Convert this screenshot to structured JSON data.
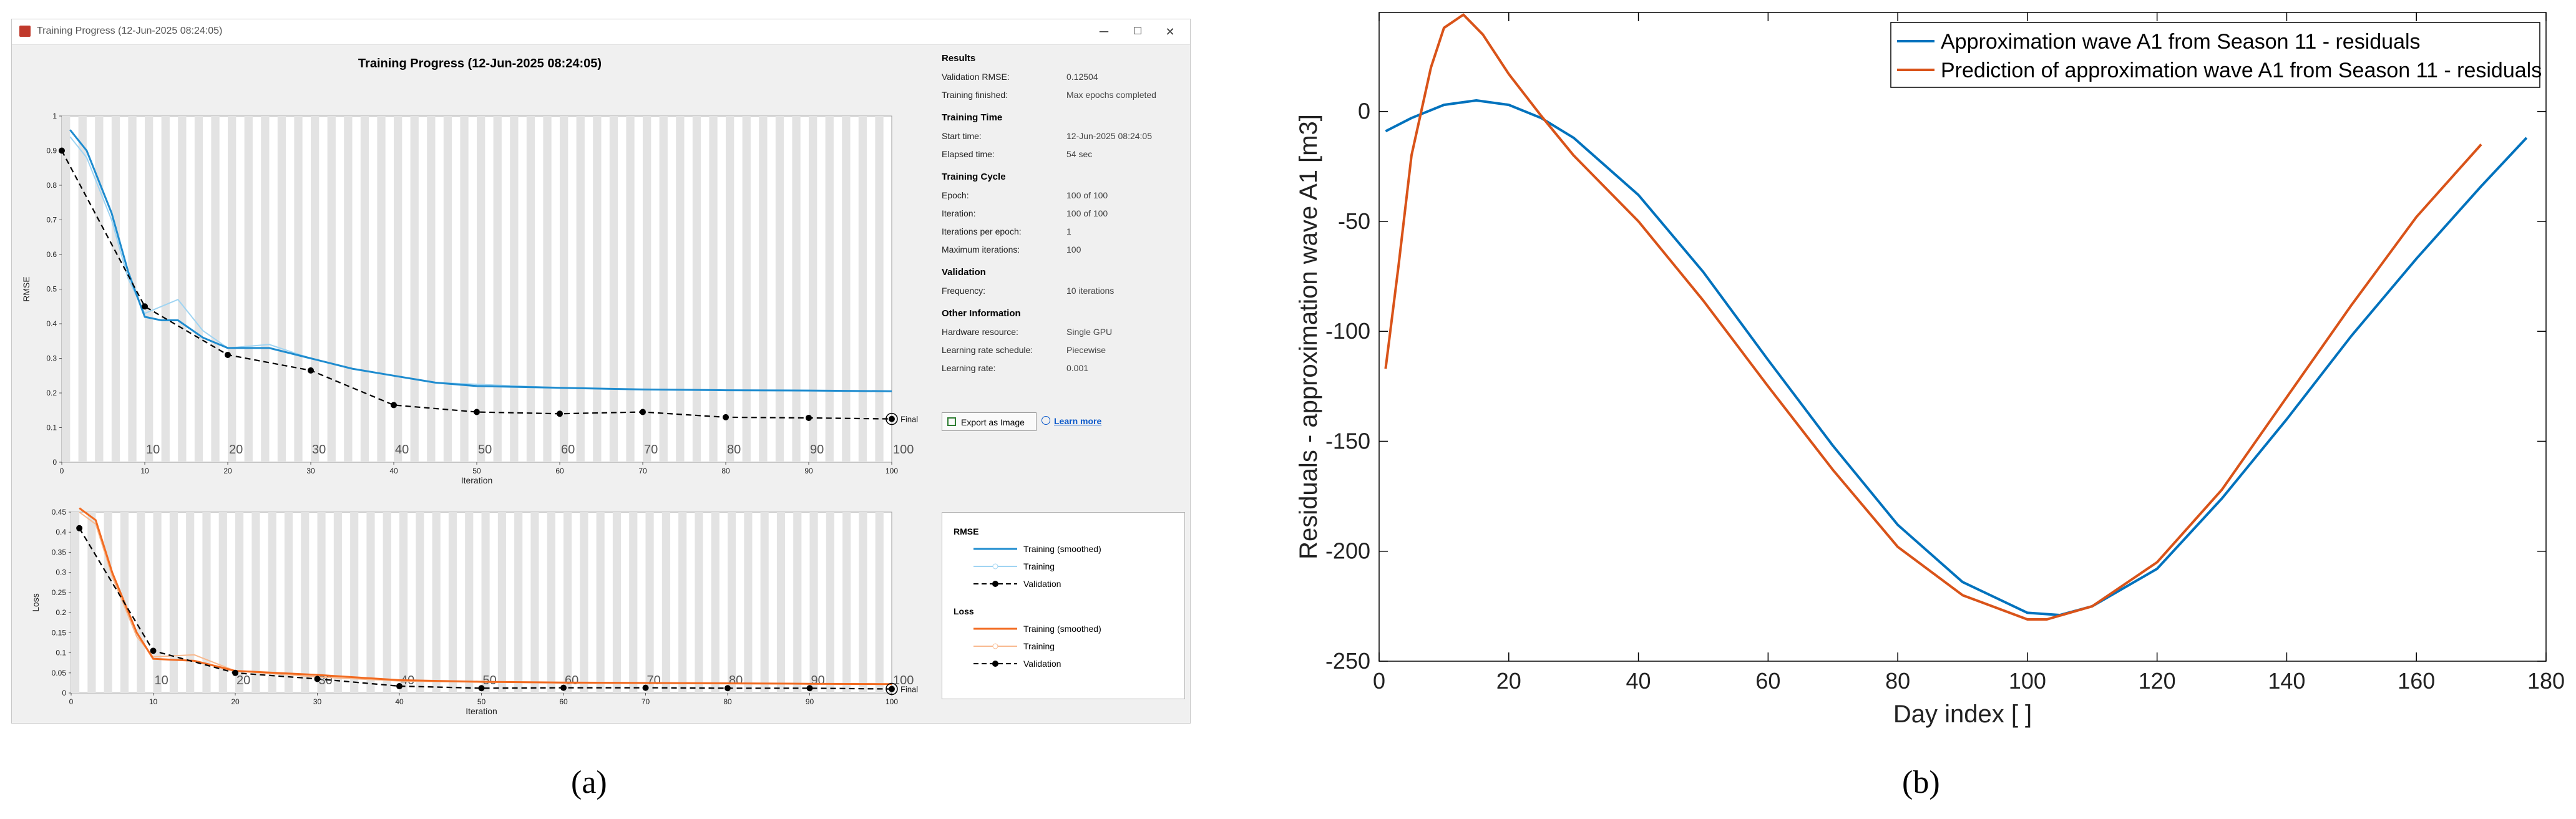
{
  "window": {
    "title": "Training Progress (12-Jun-2025 08:24:05)",
    "minimize": "─",
    "maximize": "☐",
    "close": "✕"
  },
  "plot_title": "Training Progress (12-Jun-2025 08:24:05)",
  "info": {
    "sections": [
      {
        "heading": "Results",
        "rows": [
          {
            "k": "Validation RMSE:",
            "v": "0.12504"
          },
          {
            "k": "Training finished:",
            "v": "Max epochs completed"
          }
        ]
      },
      {
        "heading": "Training Time",
        "rows": [
          {
            "k": "Start time:",
            "v": "12-Jun-2025 08:24:05"
          },
          {
            "k": "Elapsed time:",
            "v": "54 sec"
          }
        ]
      },
      {
        "heading": "Training Cycle",
        "rows": [
          {
            "k": "Epoch:",
            "v": "100 of 100"
          },
          {
            "k": "Iteration:",
            "v": "100 of 100"
          },
          {
            "k": "Iterations per epoch:",
            "v": "1"
          },
          {
            "k": "Maximum iterations:",
            "v": "100"
          }
        ]
      },
      {
        "heading": "Validation",
        "rows": [
          {
            "k": "Frequency:",
            "v": "10 iterations"
          }
        ]
      },
      {
        "heading": "Other Information",
        "rows": [
          {
            "k": "Hardware resource:",
            "v": "Single GPU"
          },
          {
            "k": "Learning rate schedule:",
            "v": "Piecewise"
          },
          {
            "k": "Learning rate:",
            "v": "0.001"
          }
        ]
      }
    ],
    "export_label": "Export as Image",
    "learn_label": "Learn more"
  },
  "legend": {
    "rmse_heading": "RMSE",
    "rmse_items": [
      "Training (smoothed)",
      "Training",
      "Validation"
    ],
    "loss_heading": "Loss",
    "loss_items": [
      "Training (smoothed)",
      "Training",
      "Validation"
    ]
  },
  "colors": {
    "rmse": "#1f8ccf",
    "rmse_light": "#9fd4f2",
    "loss": "#f26b21",
    "loss_light": "#f8b98f",
    "validation": "#000000",
    "matlab_blue": "#0072bd",
    "matlab_orange": "#d95319"
  },
  "final_label": "Final",
  "caption_a": "(a)",
  "caption_b": "(b)",
  "chart_data": [
    {
      "type": "line",
      "title": "",
      "xlabel": "Iteration",
      "ylabel": "RMSE",
      "xlim": [
        0,
        100
      ],
      "ylim": [
        0,
        1
      ],
      "xticks": [
        0,
        10,
        20,
        30,
        40,
        50,
        60,
        70,
        80,
        90,
        100
      ],
      "yticks": [
        0,
        0.1,
        0.2,
        0.3,
        0.4,
        0.5,
        0.6,
        0.7,
        0.8,
        0.9,
        1
      ],
      "epoch_labels": [
        10,
        20,
        30,
        40,
        50,
        60,
        70,
        80,
        90,
        100
      ],
      "series": [
        {
          "name": "Training (smoothed)",
          "x": [
            1,
            3,
            6,
            8,
            10,
            12,
            14,
            17,
            20,
            25,
            30,
            35,
            40,
            45,
            50,
            60,
            70,
            80,
            90,
            100
          ],
          "y": [
            0.96,
            0.9,
            0.72,
            0.55,
            0.42,
            0.41,
            0.41,
            0.36,
            0.33,
            0.33,
            0.3,
            0.27,
            0.25,
            0.23,
            0.22,
            0.215,
            0.21,
            0.208,
            0.207,
            0.205
          ]
        },
        {
          "name": "Training",
          "x": [
            1,
            3,
            6,
            8,
            10,
            12,
            14,
            17,
            20,
            25,
            30,
            35,
            40,
            45,
            50,
            60,
            70,
            80,
            90,
            100
          ],
          "y": [
            0.94,
            0.88,
            0.7,
            0.53,
            0.43,
            0.45,
            0.47,
            0.38,
            0.33,
            0.34,
            0.3,
            0.27,
            0.25,
            0.23,
            0.225,
            0.215,
            0.21,
            0.208,
            0.207,
            0.205
          ]
        },
        {
          "name": "Validation",
          "x": [
            0,
            10,
            20,
            30,
            40,
            50,
            60,
            70,
            80,
            90,
            100
          ],
          "y": [
            0.9,
            0.45,
            0.31,
            0.265,
            0.165,
            0.145,
            0.14,
            0.145,
            0.13,
            0.128,
            0.125
          ]
        }
      ]
    },
    {
      "type": "line",
      "title": "",
      "xlabel": "Iteration",
      "ylabel": "Loss",
      "xlim": [
        0,
        100
      ],
      "ylim": [
        0,
        0.45
      ],
      "xticks": [
        0,
        10,
        20,
        30,
        40,
        50,
        60,
        70,
        80,
        90,
        100
      ],
      "yticks": [
        0,
        0.05,
        0.1,
        0.15,
        0.2,
        0.25,
        0.3,
        0.35,
        0.4,
        0.45
      ],
      "epoch_labels": [
        10,
        20,
        30,
        40,
        50,
        60,
        70,
        80,
        90,
        100
      ],
      "series": [
        {
          "name": "Training (smoothed)",
          "x": [
            1,
            3,
            5,
            8,
            10,
            15,
            20,
            30,
            40,
            50,
            60,
            70,
            80,
            90,
            100
          ],
          "y": [
            0.46,
            0.43,
            0.3,
            0.15,
            0.085,
            0.08,
            0.055,
            0.045,
            0.032,
            0.028,
            0.026,
            0.025,
            0.024,
            0.023,
            0.022
          ]
        },
        {
          "name": "Training",
          "x": [
            1,
            3,
            5,
            8,
            10,
            15,
            20,
            30,
            40,
            50,
            60,
            70,
            80,
            90,
            100
          ],
          "y": [
            0.45,
            0.42,
            0.29,
            0.14,
            0.09,
            0.095,
            0.055,
            0.04,
            0.03,
            0.027,
            0.025,
            0.024,
            0.023,
            0.023,
            0.022
          ]
        },
        {
          "name": "Validation",
          "x": [
            1,
            10,
            20,
            30,
            40,
            50,
            60,
            70,
            80,
            90,
            100
          ],
          "y": [
            0.41,
            0.105,
            0.05,
            0.035,
            0.017,
            0.012,
            0.013,
            0.013,
            0.012,
            0.012,
            0.01
          ]
        }
      ]
    },
    {
      "type": "line",
      "title": "",
      "xlabel": "Day index [ ]",
      "ylabel": "Residuals - approximation wave A1 [m3]",
      "xlim": [
        0,
        180
      ],
      "ylim": [
        -250,
        45
      ],
      "xticks": [
        0,
        20,
        40,
        60,
        80,
        100,
        120,
        140,
        160,
        180
      ],
      "yticks": [
        0,
        -50,
        -100,
        -150,
        -200,
        -250
      ],
      "legend_position": "top-right",
      "series": [
        {
          "name": "Approximation wave A1 from Season 11 - residuals",
          "x": [
            1,
            5,
            10,
            15,
            20,
            25,
            30,
            40,
            50,
            60,
            70,
            80,
            90,
            100,
            105,
            110,
            120,
            130,
            140,
            150,
            160,
            170,
            177
          ],
          "y": [
            -9,
            -3,
            3,
            5,
            3,
            -3,
            -12,
            -38,
            -73,
            -113,
            -152,
            -188,
            -214,
            -228,
            -229,
            -225,
            -208,
            -176,
            -140,
            -102,
            -67,
            -34,
            -12
          ]
        },
        {
          "name": "Prediction of approximation wave A1 from Season 11 - residuals",
          "x": [
            1,
            3,
            5,
            8,
            10,
            13,
            16,
            20,
            25,
            30,
            40,
            50,
            60,
            70,
            80,
            90,
            100,
            103,
            110,
            120,
            130,
            140,
            150,
            160,
            170
          ],
          "y": [
            -117,
            -70,
            -20,
            20,
            38,
            44,
            35,
            17,
            -2,
            -20,
            -50,
            -86,
            -125,
            -163,
            -198,
            -220,
            -231,
            -231,
            -225,
            -205,
            -172,
            -130,
            -88,
            -48,
            -15
          ]
        }
      ]
    }
  ]
}
